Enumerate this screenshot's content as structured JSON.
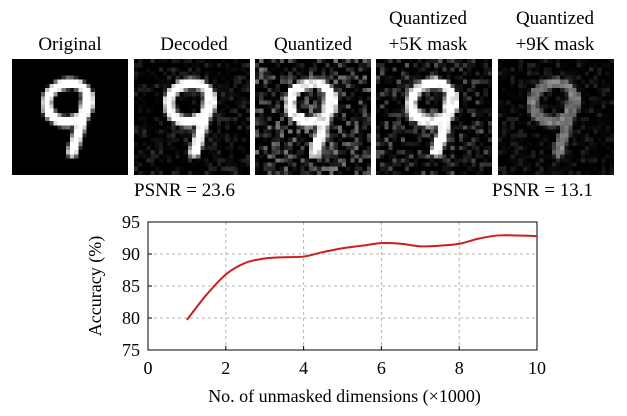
{
  "panels": [
    {
      "id": "original",
      "label_lines": [
        "Original"
      ],
      "noise": 0.0
    },
    {
      "id": "decoded",
      "label_lines": [
        "Decoded"
      ],
      "noise": 0.28
    },
    {
      "id": "quantized",
      "label_lines": [
        "Quantized"
      ],
      "noise": 0.75
    },
    {
      "id": "quantized-5k",
      "label_lines": [
        "Quantized",
        "+5K mask"
      ],
      "noise": 0.55
    },
    {
      "id": "quantized-9k",
      "label_lines": [
        "Quantized",
        "+9K mask"
      ],
      "noise": 0.22
    }
  ],
  "psnr_left": "PSNR = 23.6",
  "psnr_right": "PSNR = 13.1",
  "chart_data": {
    "type": "line",
    "xlabel": "No. of unmasked dimensions (×1000)",
    "ylabel": "Accuracy (%)",
    "xlim": [
      0,
      10
    ],
    "ylim": [
      75,
      95
    ],
    "xticks": [
      0,
      2,
      4,
      6,
      8,
      10
    ],
    "yticks": [
      75,
      80,
      85,
      90,
      95
    ],
    "grid": true,
    "series": [
      {
        "color": "#cc1f1f",
        "x": [
          1,
          1.5,
          2,
          2.5,
          3,
          3.5,
          4,
          4.5,
          5,
          5.5,
          6,
          6.5,
          7,
          7.5,
          8,
          8.5,
          9,
          9.5,
          10
        ],
        "y": [
          79.7,
          83.6,
          86.8,
          88.6,
          89.3,
          89.5,
          89.6,
          90.3,
          90.9,
          91.3,
          91.7,
          91.6,
          91.2,
          91.3,
          91.6,
          92.4,
          92.9,
          92.9,
          92.8
        ]
      }
    ]
  }
}
